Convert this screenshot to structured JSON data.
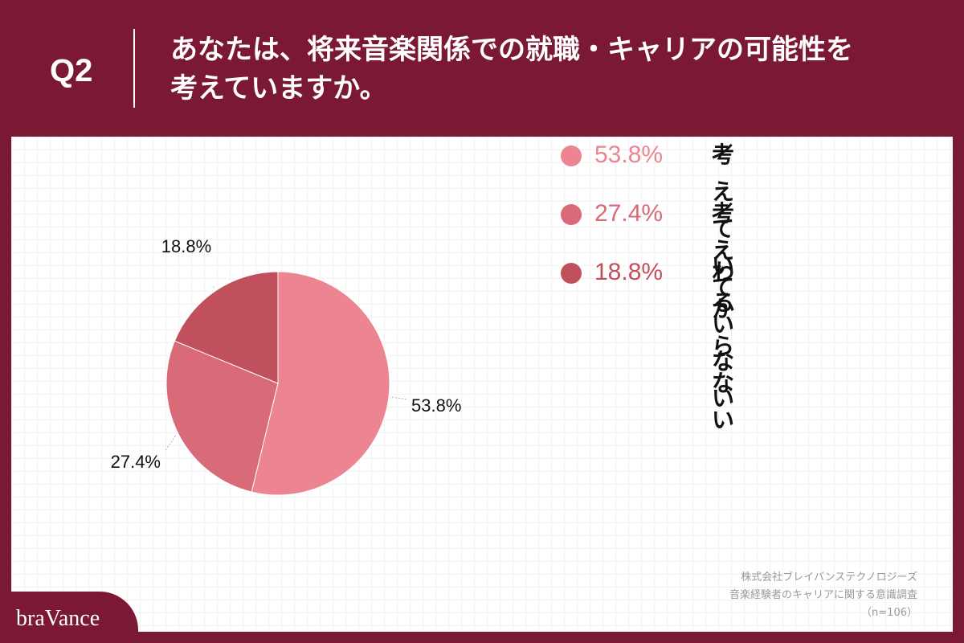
{
  "header": {
    "q_label": "Q2",
    "question_line1": "あなたは、将来音楽関係での就職・キャリアの可能性を",
    "question_line2": "考えていますか。"
  },
  "chart_data": {
    "type": "pie",
    "title": "",
    "slices": [
      {
        "label": "考えている",
        "value": 53.8,
        "value_label": "53.8%",
        "color": "#ec8591"
      },
      {
        "label": "考えていない",
        "value": 27.4,
        "value_label": "27.4%",
        "color": "#d96a78"
      },
      {
        "label": "わからない",
        "value": 18.8,
        "value_label": "18.8%",
        "color": "#c0505c"
      }
    ],
    "start": "12 o'clock",
    "direction": "clockwise",
    "legend_position": "right"
  },
  "colors": {
    "brand": "#7b1934",
    "panel": "#ffffff",
    "leader_line": "#b3b3b3"
  },
  "source": {
    "line1": "株式会社ブレイバンステクノロジーズ",
    "line2": "音楽経験者のキャリアに関する意識調査",
    "line3": "（n=106）"
  },
  "logo": "braVance"
}
